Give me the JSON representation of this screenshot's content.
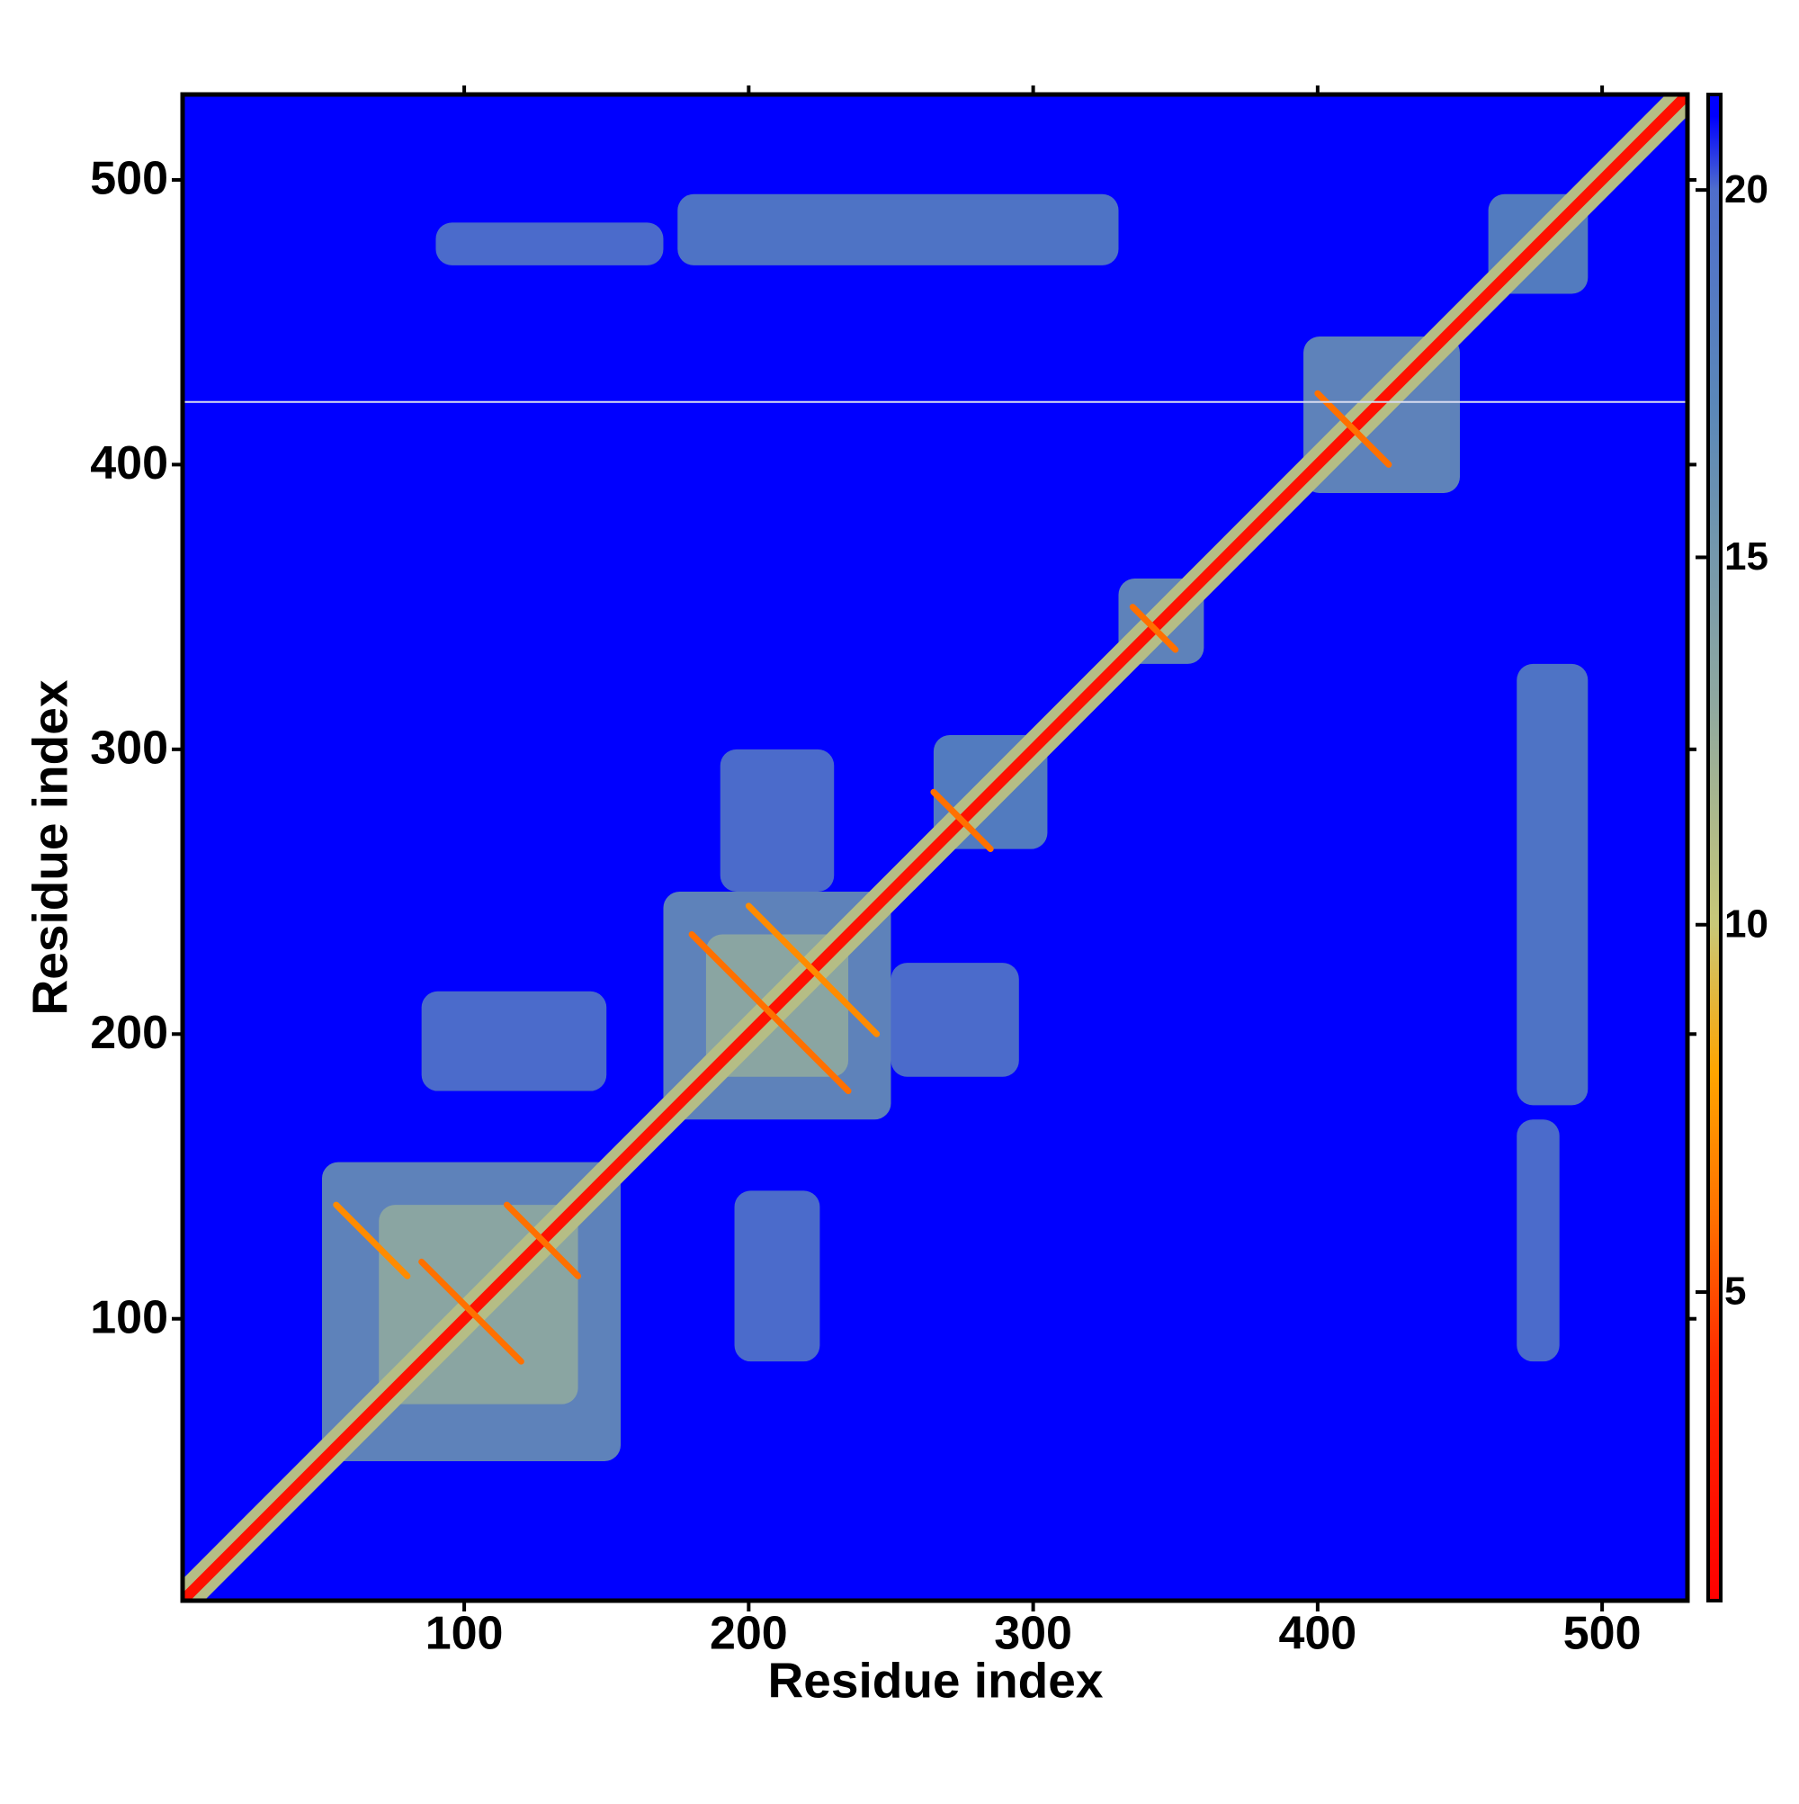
{
  "chart_data": {
    "type": "heatmap",
    "xlabel": "Residue index",
    "ylabel": "Residue index",
    "xlim": [
      1,
      530
    ],
    "ylim": [
      1,
      530
    ],
    "xticks": [
      100,
      200,
      300,
      400,
      500
    ],
    "yticks": [
      100,
      200,
      300,
      400,
      500
    ],
    "background": 21,
    "zlim": [
      0.8,
      21.3
    ],
    "zticks": [
      5,
      10,
      15,
      20
    ],
    "colorscale": [
      [
        0.8,
        "#ff0000"
      ],
      [
        4,
        "#ff2a00"
      ],
      [
        6,
        "#ff7000"
      ],
      [
        8,
        "#ffa500"
      ],
      [
        10,
        "#c8c878"
      ],
      [
        13,
        "#8fa8a0"
      ],
      [
        17,
        "#5b88b8"
      ],
      [
        20,
        "#4f6ecc"
      ],
      [
        21,
        "#0000ff"
      ],
      [
        21.3,
        "#0000ff"
      ]
    ],
    "diagonal": {
      "core": 2,
      "halo": 11
    },
    "cells": [
      {
        "x": [
          50,
          155
        ],
        "y": [
          50,
          155
        ],
        "value": 16
      },
      {
        "x": [
          70,
          140
        ],
        "y": [
          70,
          140
        ],
        "value": 13
      },
      {
        "x": [
          170,
          250
        ],
        "y": [
          170,
          250
        ],
        "value": 16
      },
      {
        "x": [
          185,
          235
        ],
        "y": [
          185,
          235
        ],
        "value": 13
      },
      {
        "x": [
          265,
          305
        ],
        "y": [
          265,
          305
        ],
        "value": 17
      },
      {
        "x": [
          330,
          360
        ],
        "y": [
          330,
          360
        ],
        "value": 16
      },
      {
        "x": [
          395,
          450
        ],
        "y": [
          390,
          445
        ],
        "value": 16
      },
      {
        "x": [
          460,
          495
        ],
        "y": [
          460,
          495
        ],
        "value": 17
      },
      {
        "x": [
          175,
          330
        ],
        "y": [
          470,
          495
        ],
        "value": 18
      },
      {
        "x": [
          470,
          495
        ],
        "y": [
          175,
          330
        ],
        "value": 18
      },
      {
        "x": [
          90,
          170
        ],
        "y": [
          470,
          485
        ],
        "value": 19
      },
      {
        "x": [
          470,
          485
        ],
        "y": [
          85,
          170
        ],
        "value": 19
      },
      {
        "x": [
          85,
          150
        ],
        "y": [
          180,
          215
        ],
        "value": 19
      },
      {
        "x": [
          195,
          225
        ],
        "y": [
          85,
          145
        ],
        "value": 19
      },
      {
        "x": [
          250,
          295
        ],
        "y": [
          185,
          225
        ],
        "value": 19
      },
      {
        "x": [
          190,
          230
        ],
        "y": [
          250,
          300
        ],
        "value": 19
      }
    ],
    "streaks": [
      {
        "from": [
          85,
          120
        ],
        "to": [
          120,
          85
        ],
        "value": 6
      },
      {
        "from": [
          115,
          140
        ],
        "to": [
          140,
          115
        ],
        "value": 6
      },
      {
        "from": [
          55,
          140
        ],
        "to": [
          80,
          115
        ],
        "value": 7
      },
      {
        "from": [
          180,
          235
        ],
        "to": [
          235,
          180
        ],
        "value": 6
      },
      {
        "from": [
          200,
          245
        ],
        "to": [
          245,
          200
        ],
        "value": 7
      },
      {
        "from": [
          265,
          285
        ],
        "to": [
          285,
          265
        ],
        "value": 6
      },
      {
        "from": [
          335,
          350
        ],
        "to": [
          350,
          335
        ],
        "value": 6
      },
      {
        "from": [
          400,
          425
        ],
        "to": [
          425,
          400
        ],
        "value": 6
      }
    ],
    "gap_rows": [
      422
    ]
  }
}
